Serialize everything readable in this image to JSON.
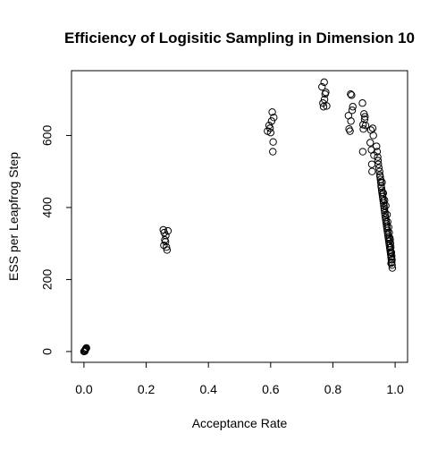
{
  "chart_data": {
    "type": "scatter",
    "title": "Efficiency of Logisitic Sampling in Dimension 10",
    "xlabel": "Acceptance Rate",
    "ylabel": "ESS per Leapfrog Step",
    "xlim": [
      -0.04,
      1.04
    ],
    "ylim": [
      -30,
      780
    ],
    "xticks": [
      0.0,
      0.2,
      0.4,
      0.6,
      0.8,
      1.0
    ],
    "xtick_labels": [
      "0.0",
      "0.2",
      "0.4",
      "0.6",
      "0.8",
      "1.0"
    ],
    "yticks": [
      0,
      200,
      400,
      600
    ],
    "ytick_labels": [
      "0",
      "200",
      "400",
      "600"
    ],
    "grid": false,
    "legend": "none",
    "marker": "open-circle",
    "colors": {
      "points": "#000000",
      "axes": "#000000",
      "background": "#ffffff"
    },
    "points": [
      {
        "x": 0.0,
        "y": 0
      },
      {
        "x": 0.002,
        "y": 2
      },
      {
        "x": 0.004,
        "y": 4
      },
      {
        "x": 0.005,
        "y": 6
      },
      {
        "x": 0.006,
        "y": 8
      },
      {
        "x": 0.008,
        "y": 10
      },
      {
        "x": 0.003,
        "y": 1
      },
      {
        "x": 0.255,
        "y": 338
      },
      {
        "x": 0.258,
        "y": 330
      },
      {
        "x": 0.26,
        "y": 310
      },
      {
        "x": 0.262,
        "y": 305
      },
      {
        "x": 0.257,
        "y": 295
      },
      {
        "x": 0.265,
        "y": 290
      },
      {
        "x": 0.267,
        "y": 282
      },
      {
        "x": 0.27,
        "y": 335
      },
      {
        "x": 0.263,
        "y": 322
      },
      {
        "x": 0.59,
        "y": 612
      },
      {
        "x": 0.595,
        "y": 628
      },
      {
        "x": 0.6,
        "y": 608
      },
      {
        "x": 0.603,
        "y": 640
      },
      {
        "x": 0.605,
        "y": 665
      },
      {
        "x": 0.607,
        "y": 555
      },
      {
        "x": 0.608,
        "y": 582
      },
      {
        "x": 0.61,
        "y": 650
      },
      {
        "x": 0.598,
        "y": 620
      },
      {
        "x": 0.765,
        "y": 735
      },
      {
        "x": 0.768,
        "y": 690
      },
      {
        "x": 0.77,
        "y": 680
      },
      {
        "x": 0.772,
        "y": 748
      },
      {
        "x": 0.775,
        "y": 715
      },
      {
        "x": 0.777,
        "y": 720
      },
      {
        "x": 0.78,
        "y": 682
      },
      {
        "x": 0.773,
        "y": 700
      },
      {
        "x": 0.85,
        "y": 655
      },
      {
        "x": 0.852,
        "y": 618
      },
      {
        "x": 0.855,
        "y": 612
      },
      {
        "x": 0.857,
        "y": 715
      },
      {
        "x": 0.858,
        "y": 640
      },
      {
        "x": 0.86,
        "y": 712
      },
      {
        "x": 0.862,
        "y": 670
      },
      {
        "x": 0.864,
        "y": 680
      },
      {
        "x": 0.895,
        "y": 690
      },
      {
        "x": 0.897,
        "y": 630
      },
      {
        "x": 0.898,
        "y": 618
      },
      {
        "x": 0.9,
        "y": 660
      },
      {
        "x": 0.902,
        "y": 645
      },
      {
        "x": 0.903,
        "y": 652
      },
      {
        "x": 0.905,
        "y": 628
      },
      {
        "x": 0.896,
        "y": 555
      },
      {
        "x": 0.92,
        "y": 580
      },
      {
        "x": 0.922,
        "y": 615
      },
      {
        "x": 0.924,
        "y": 560
      },
      {
        "x": 0.925,
        "y": 520
      },
      {
        "x": 0.926,
        "y": 500
      },
      {
        "x": 0.928,
        "y": 620
      },
      {
        "x": 0.93,
        "y": 600
      },
      {
        "x": 0.932,
        "y": 545
      },
      {
        "x": 0.94,
        "y": 570
      },
      {
        "x": 0.942,
        "y": 555
      },
      {
        "x": 0.944,
        "y": 540
      },
      {
        "x": 0.945,
        "y": 530
      },
      {
        "x": 0.946,
        "y": 520
      },
      {
        "x": 0.948,
        "y": 510
      },
      {
        "x": 0.95,
        "y": 500
      },
      {
        "x": 0.951,
        "y": 490
      },
      {
        "x": 0.952,
        "y": 485
      },
      {
        "x": 0.953,
        "y": 478
      },
      {
        "x": 0.954,
        "y": 470
      },
      {
        "x": 0.955,
        "y": 460
      },
      {
        "x": 0.956,
        "y": 455
      },
      {
        "x": 0.957,
        "y": 448
      },
      {
        "x": 0.958,
        "y": 442
      },
      {
        "x": 0.959,
        "y": 436
      },
      {
        "x": 0.96,
        "y": 430
      },
      {
        "x": 0.961,
        "y": 424
      },
      {
        "x": 0.962,
        "y": 418
      },
      {
        "x": 0.963,
        "y": 412
      },
      {
        "x": 0.964,
        "y": 405
      },
      {
        "x": 0.965,
        "y": 398
      },
      {
        "x": 0.966,
        "y": 392
      },
      {
        "x": 0.967,
        "y": 385
      },
      {
        "x": 0.968,
        "y": 378
      },
      {
        "x": 0.969,
        "y": 372
      },
      {
        "x": 0.97,
        "y": 366
      },
      {
        "x": 0.971,
        "y": 360
      },
      {
        "x": 0.972,
        "y": 354
      },
      {
        "x": 0.973,
        "y": 348
      },
      {
        "x": 0.974,
        "y": 342
      },
      {
        "x": 0.975,
        "y": 336
      },
      {
        "x": 0.976,
        "y": 330
      },
      {
        "x": 0.977,
        "y": 324
      },
      {
        "x": 0.978,
        "y": 318
      },
      {
        "x": 0.979,
        "y": 312
      },
      {
        "x": 0.98,
        "y": 306
      },
      {
        "x": 0.981,
        "y": 300
      },
      {
        "x": 0.982,
        "y": 294
      },
      {
        "x": 0.983,
        "y": 288
      },
      {
        "x": 0.984,
        "y": 282
      },
      {
        "x": 0.985,
        "y": 276
      },
      {
        "x": 0.986,
        "y": 270
      },
      {
        "x": 0.987,
        "y": 262
      },
      {
        "x": 0.988,
        "y": 255
      },
      {
        "x": 0.989,
        "y": 248
      },
      {
        "x": 0.99,
        "y": 240
      },
      {
        "x": 0.991,
        "y": 232
      },
      {
        "x": 0.958,
        "y": 470
      },
      {
        "x": 0.962,
        "y": 440
      },
      {
        "x": 0.966,
        "y": 420
      },
      {
        "x": 0.97,
        "y": 405
      },
      {
        "x": 0.974,
        "y": 380
      },
      {
        "x": 0.976,
        "y": 360
      },
      {
        "x": 0.979,
        "y": 345
      },
      {
        "x": 0.981,
        "y": 330
      },
      {
        "x": 0.983,
        "y": 315
      },
      {
        "x": 0.985,
        "y": 300
      },
      {
        "x": 0.986,
        "y": 290
      },
      {
        "x": 0.988,
        "y": 275
      },
      {
        "x": 0.989,
        "y": 265
      },
      {
        "x": 0.99,
        "y": 255
      },
      {
        "x": 0.987,
        "y": 245
      },
      {
        "x": 0.984,
        "y": 310
      }
    ]
  }
}
